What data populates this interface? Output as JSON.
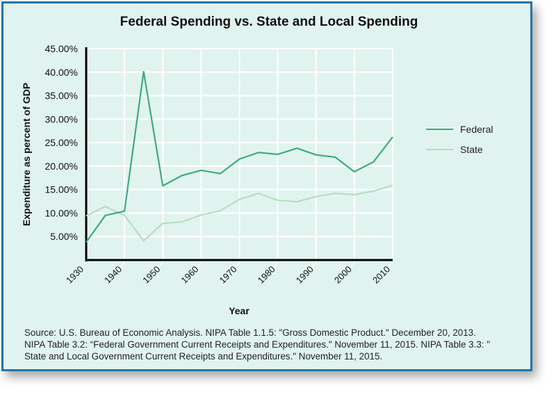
{
  "chart_data": {
    "type": "line",
    "title": "Federal Spending vs. State and Local Spending",
    "xlabel": "Year",
    "ylabel": "Expenditure as percent of GDP",
    "xlim": [
      1930,
      2010
    ],
    "ylim": [
      0,
      45
    ],
    "x_ticks": [
      "1930",
      "1940",
      "1950",
      "1960",
      "1970",
      "1980",
      "1990",
      "2000",
      "2010"
    ],
    "y_ticks": [
      "5.00%",
      "10.00%",
      "15.00%",
      "20.00%",
      "25.00%",
      "30.00%",
      "35.00%",
      "40.00%",
      "45.00%"
    ],
    "grid": true,
    "legend_placement": "right",
    "x": [
      1930,
      1935,
      1940,
      1945,
      1950,
      1955,
      1960,
      1965,
      1970,
      1975,
      1980,
      1985,
      1990,
      1995,
      2000,
      2005,
      2010
    ],
    "series": [
      {
        "name": "Federal",
        "color": "#3daa80",
        "values": [
          3.8,
          9.5,
          10.4,
          40.1,
          15.8,
          18.0,
          19.1,
          18.4,
          21.5,
          22.9,
          22.5,
          23.8,
          22.4,
          21.9,
          18.8,
          20.9,
          26.2
        ]
      },
      {
        "name": "State",
        "color": "#b7ddc2",
        "values": [
          9.4,
          11.4,
          9.5,
          4.1,
          7.8,
          8.1,
          9.6,
          10.5,
          12.9,
          14.2,
          12.7,
          12.4,
          13.5,
          14.2,
          13.9,
          14.7,
          15.9
        ]
      }
    ]
  },
  "source_lines": [
    "Source: U.S. Bureau of Economic Analysis. NIPA Table 1.1.5: \"Gross Domestic Product.\" December 20, 2013.",
    "NIPA Table 3.2: “Federal Government Current Receipts and Expenditures.\" November 11, 2015. NIPA Table 3.3: \"",
    "State and Local Government Current Receipts and Expenditures.\" November 11, 2015."
  ],
  "colors": {
    "background": "#e1f3ef",
    "border": "#2474a8",
    "grid": "#ffffff",
    "axis": "#000000"
  }
}
